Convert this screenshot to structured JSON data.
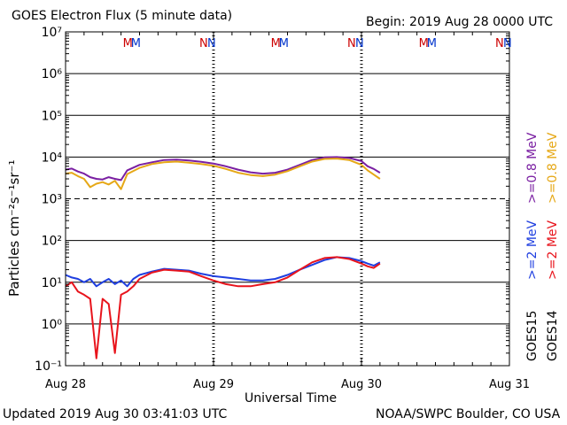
{
  "header": {
    "title": "GOES Electron Flux (5 minute data)",
    "begin": "Begin: 2019 Aug 28 0000 UTC"
  },
  "footer": {
    "updated": "Updated 2019 Aug 30 03:41:03 UTC",
    "credit": "NOAA/SWPC Boulder, CO USA"
  },
  "chart_data": {
    "type": "line",
    "title": "GOES Electron Flux (5 minute data)",
    "xlabel": "Universal Time",
    "ylabel": "Particles cm⁻²s⁻¹sr⁻¹",
    "yscale": "log",
    "ylim": [
      0.1,
      10000000
    ],
    "xlim": [
      0,
      72
    ],
    "x_unit": "hours since 2019 Aug 28 0000 UTC",
    "x_ticks": [
      {
        "x": 0,
        "label": "Aug 28"
      },
      {
        "x": 24,
        "label": "Aug 29"
      },
      {
        "x": 48,
        "label": "Aug 30"
      },
      {
        "x": 72,
        "label": "Aug 31"
      }
    ],
    "y_ticks": [
      {
        "exp": -1,
        "label": "10⁻¹"
      },
      {
        "exp": 0,
        "label": "10⁰"
      },
      {
        "exp": 1,
        "label": "10¹"
      },
      {
        "exp": 2,
        "label": "10²"
      },
      {
        "exp": 3,
        "label": "10³"
      },
      {
        "exp": 4,
        "label": "10⁴"
      },
      {
        "exp": 5,
        "label": "10⁵"
      },
      {
        "exp": 6,
        "label": "10⁶"
      },
      {
        "exp": 7,
        "label": "10⁷"
      }
    ],
    "threshold": {
      "value": 1000,
      "style": "dashed"
    },
    "grid": true,
    "markers": [
      {
        "x": 10.1,
        "label": "M",
        "color": "#cc0000"
      },
      {
        "x": 11.4,
        "label": "M",
        "color": "#0033cc"
      },
      {
        "x": 22.4,
        "label": "N",
        "color": "#cc0000"
      },
      {
        "x": 23.7,
        "label": "N",
        "color": "#0033cc"
      },
      {
        "x": 34.1,
        "label": "M",
        "color": "#cc0000"
      },
      {
        "x": 35.4,
        "label": "M",
        "color": "#0033cc"
      },
      {
        "x": 46.4,
        "label": "N",
        "color": "#cc0000"
      },
      {
        "x": 47.7,
        "label": "N",
        "color": "#0033cc"
      },
      {
        "x": 58.1,
        "label": "M",
        "color": "#cc0000"
      },
      {
        "x": 59.4,
        "label": "M",
        "color": "#0033cc"
      },
      {
        "x": 70.4,
        "label": "N",
        "color": "#cc0000"
      },
      {
        "x": 71.7,
        "label": "N",
        "color": "#0033cc"
      }
    ],
    "series": [
      {
        "name": "GOES15 >=0.8 MeV",
        "color": "#7a1fa2",
        "x": [
          0,
          1,
          2,
          3,
          4,
          5,
          6,
          7,
          8,
          9,
          10,
          12,
          14,
          16,
          18,
          20,
          22,
          24,
          26,
          28,
          30,
          32,
          34,
          36,
          38,
          40,
          42,
          44,
          46,
          48,
          49,
          50,
          51
        ],
        "y": [
          5000,
          5300,
          4500,
          4000,
          3300,
          3000,
          2900,
          3300,
          3000,
          2800,
          4800,
          6500,
          7500,
          8500,
          8700,
          8300,
          7700,
          7000,
          6000,
          5000,
          4300,
          4000,
          4200,
          5000,
          6500,
          8500,
          9800,
          10000,
          9500,
          8000,
          6000,
          5200,
          4200
        ]
      },
      {
        "name": "GOES14 >=0.8 MeV",
        "color": "#e6a817",
        "x": [
          0,
          1,
          2,
          3,
          4,
          5,
          6,
          7,
          8,
          9,
          10,
          12,
          14,
          16,
          18,
          20,
          22,
          24,
          26,
          28,
          30,
          32,
          34,
          36,
          38,
          40,
          42,
          44,
          46,
          48,
          49,
          50,
          51
        ],
        "y": [
          4000,
          4200,
          3500,
          3000,
          1900,
          2300,
          2500,
          2200,
          2700,
          1700,
          3900,
          5500,
          6800,
          7500,
          7800,
          7300,
          6800,
          6200,
          5200,
          4200,
          3700,
          3500,
          3800,
          4600,
          6000,
          7800,
          9000,
          9200,
          8500,
          6500,
          4800,
          3800,
          3000
        ]
      },
      {
        "name": "GOES15 >=2 MeV",
        "color": "#1f3fe0",
        "x": [
          0,
          1,
          2,
          3,
          4,
          5,
          6,
          7,
          8,
          9,
          10,
          11,
          12,
          14,
          16,
          18,
          20,
          22,
          24,
          26,
          28,
          30,
          32,
          34,
          36,
          38,
          40,
          42,
          44,
          46,
          48,
          49,
          50,
          51
        ],
        "y": [
          15,
          13,
          12,
          10,
          12,
          8,
          10,
          12,
          9,
          11,
          8,
          12,
          15,
          18,
          21,
          20,
          19,
          16,
          14,
          13,
          12,
          11,
          11,
          12,
          15,
          20,
          26,
          34,
          40,
          38,
          32,
          28,
          25,
          30
        ]
      },
      {
        "name": "GOES14 >=2 MeV",
        "color": "#e8141c",
        "x": [
          0,
          1,
          2,
          3,
          4,
          5,
          6,
          7,
          8,
          9,
          10,
          11,
          12,
          14,
          16,
          18,
          20,
          22,
          24,
          26,
          28,
          30,
          32,
          34,
          36,
          38,
          40,
          42,
          44,
          46,
          48,
          49,
          50,
          51
        ],
        "y": [
          8,
          10,
          6,
          5,
          4,
          0.15,
          4,
          3,
          0.2,
          5,
          6,
          8,
          12,
          17,
          20,
          19,
          18,
          14,
          11,
          9,
          8,
          8,
          9,
          10,
          13,
          20,
          30,
          38,
          40,
          36,
          28,
          24,
          22,
          28
        ]
      }
    ],
    "right_legend": [
      {
        "label": ">=0.8 MeV",
        "color": "#7a1fa2"
      },
      {
        "label": ">=0.8 MeV",
        "color": "#e6a817"
      },
      {
        "label": ">=2 MeV",
        "color": "#1f3fe0"
      },
      {
        "label": ">=2 MeV",
        "color": "#e8141c"
      },
      {
        "label": "GOES15",
        "color": "#000000"
      },
      {
        "label": "GOES14",
        "color": "#000000"
      }
    ]
  }
}
